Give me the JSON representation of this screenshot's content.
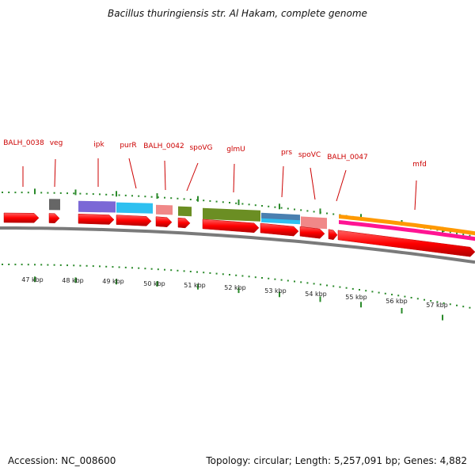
{
  "title": "Bacillus thuringiensis str. Al Hakam, complete genome",
  "footer": {
    "accession": "Accession: NC_008600",
    "summary": "Topology: circular; Length: 5,257,091 bp; Genes: 4,882"
  },
  "gene_labels": [
    "BALH_0038",
    "veg",
    "ipk",
    "purR",
    "BALH_0042",
    "spoVG",
    "glmU",
    "prs",
    "spoVC",
    "BALH_0047",
    "mfd"
  ],
  "kbp_labels": [
    "47 kbp",
    "48 kbp",
    "49 kbp",
    "50 kbp",
    "51 kbp",
    "52 kbp",
    "53 kbp",
    "54 kbp",
    "55 kbp",
    "56 kbp",
    "57 kbp"
  ],
  "colors": {
    "gene_label": "#cc0000",
    "gene_arrow": "#ff0000",
    "ticks": "#2a8a2a",
    "backbone": "#808080",
    "cog_dark_gray": "#666666",
    "cog_purple": "#7b68d6",
    "cog_cyan": "#2ec0f0",
    "cog_pink": "#f08888",
    "cog_olive": "#6b8e23",
    "cog_steelblue": "#4a7fb0",
    "cog_orange": "#ff9900",
    "cog_magenta": "#ff1493"
  }
}
